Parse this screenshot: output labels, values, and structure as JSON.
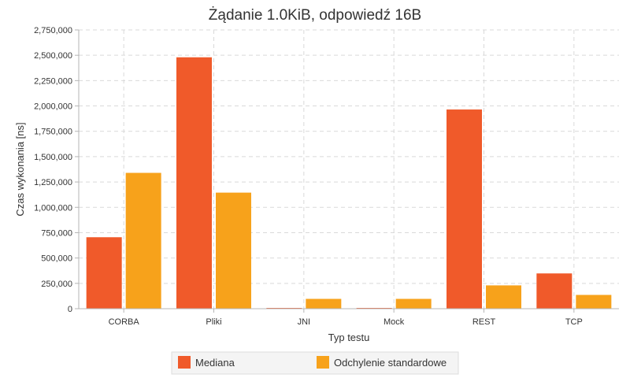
{
  "chart_data": {
    "type": "bar",
    "title": "Żądanie 1.0KiB, odpowiedź 16B",
    "xlabel": "Typ testu",
    "ylabel": "Czas wykonania [ns]",
    "categories": [
      "CORBA",
      "Pliki",
      "JNI",
      "Mock",
      "REST",
      "TCP"
    ],
    "series": [
      {
        "name": "Mediana",
        "color": "#f05a2a",
        "values": [
          705000,
          2480000,
          4000,
          2000,
          1965000,
          348000
        ]
      },
      {
        "name": "Odchylenie standardowe",
        "color": "#f7a21b",
        "values": [
          1340000,
          1145000,
          97000,
          97000,
          230000,
          136000
        ]
      }
    ],
    "ylim": [
      0,
      2750000
    ],
    "yticks": [
      0,
      250000,
      500000,
      750000,
      1000000,
      1250000,
      1500000,
      1750000,
      2000000,
      2250000,
      2500000,
      2750000
    ],
    "ytick_labels": [
      "0",
      "250,000",
      "500,000",
      "750,000",
      "1,000,000",
      "1,250,000",
      "1,500,000",
      "1,750,000",
      "2,000,000",
      "2,250,000",
      "2,500,000",
      "2,750,000"
    ],
    "grid": true,
    "legend_position": "bottom"
  }
}
